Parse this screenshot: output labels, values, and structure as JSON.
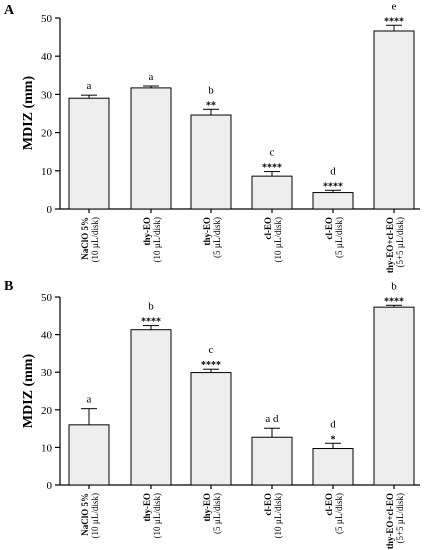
{
  "chart_data": [
    {
      "type": "bar",
      "panel": "A",
      "ylabel": "MDIZ (mm)",
      "ylim": [
        0,
        50
      ],
      "yticks": [
        0,
        10,
        20,
        30,
        40,
        50
      ],
      "categories": [
        {
          "main": "NaClO 5%",
          "sub": "(10 µL/disk)"
        },
        {
          "main": "thy-EO",
          "sub": "(10 µL/disk)"
        },
        {
          "main": "thy-EO",
          "sub": "(5 µL/disk)"
        },
        {
          "main": "cl-EO",
          "sub": "(10 µL/disk)"
        },
        {
          "main": "cl-EO",
          "sub": "(5 µL/disk)"
        },
        {
          "main": "thy-EO+cl-EO",
          "sub": "(5+5 µL/disk)"
        }
      ],
      "values": [
        29.0,
        31.7,
        24.6,
        8.6,
        4.3,
        46.6
      ],
      "errors": [
        0.8,
        0.5,
        1.5,
        1.2,
        0.6,
        1.5
      ],
      "letters": [
        "a",
        "a",
        "b",
        "c",
        "d",
        "e"
      ],
      "stars": [
        "",
        "",
        "**",
        "****",
        "****",
        "****"
      ],
      "fill": "#eeeeee"
    },
    {
      "type": "bar",
      "panel": "B",
      "ylabel": "MDIZ (mm)",
      "ylim": [
        0,
        50
      ],
      "yticks": [
        0,
        10,
        20,
        30,
        40,
        50
      ],
      "categories": [
        {
          "main": "NaClO 5%",
          "sub": "(10 µL/disk)"
        },
        {
          "main": "thy-EO",
          "sub": "(10 µL/disk)"
        },
        {
          "main": "thy-EO",
          "sub": "(5 µL/disk)"
        },
        {
          "main": "cl-EO",
          "sub": "(10 µL/disk)"
        },
        {
          "main": "cl-EO",
          "sub": "(5 µL/disk)"
        },
        {
          "main": "thy-EO+cl-EO",
          "sub": "(5+5 µL/disk)"
        }
      ],
      "values": [
        16.0,
        41.3,
        29.9,
        12.7,
        9.7,
        47.3
      ],
      "errors": [
        4.3,
        1.1,
        0.9,
        2.4,
        1.4,
        0.5
      ],
      "letters": [
        "a",
        "b",
        "c",
        "a d",
        "d",
        "b"
      ],
      "stars": [
        "",
        "****",
        "****",
        "",
        "*",
        "****"
      ],
      "fill": "#eeeeee"
    }
  ]
}
